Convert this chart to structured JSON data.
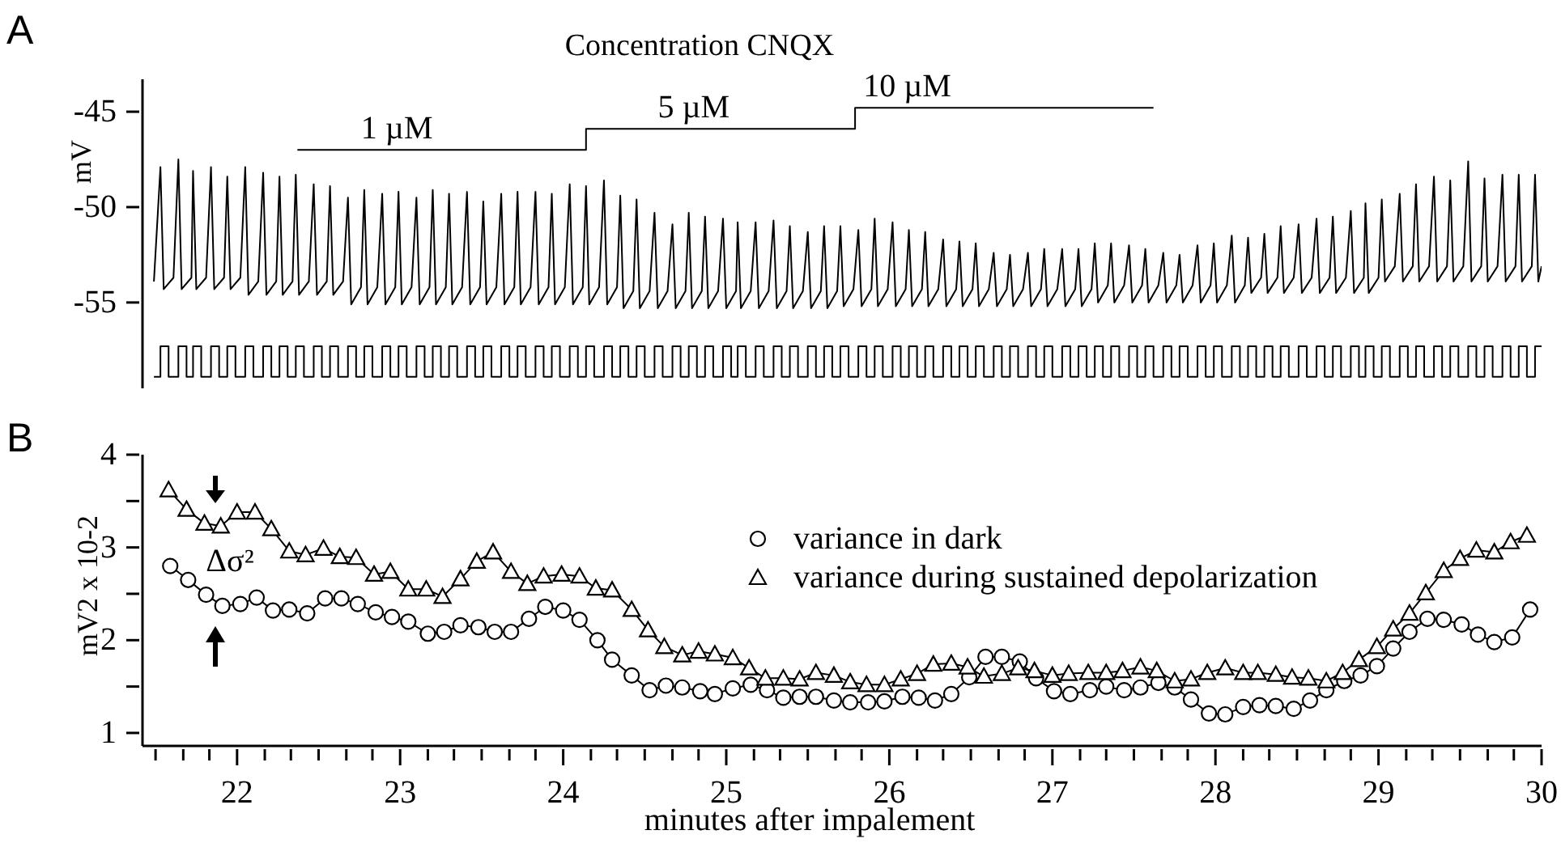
{
  "chart_data": [
    {
      "type": "line",
      "title": "Concentration CNQX",
      "ylabel": "mV",
      "annotations": [
        "A",
        {
          "text": "1 µM",
          "x": 22.98,
          "y": -47.0
        },
        {
          "text": "5 µM",
          "x": 24.8,
          "y": -45.9
        },
        {
          "text": "10 µM",
          "x": 26.11,
          "y": -44.8
        }
      ],
      "xlim": [
        21.42,
        30
      ],
      "ylim": [
        -59.5,
        -43.3
      ],
      "yticks": [
        -45,
        -50,
        -55
      ],
      "tick_labels": "y",
      "series": [
        {
          "color": "#000000",
          "x": [
            21.49,
            21.53,
            21.55,
            21.61,
            21.64,
            21.66,
            21.72,
            21.73,
            21.75,
            21.81,
            21.84,
            21.86,
            21.92,
            21.94,
            21.96,
            22.02,
            22.05,
            22.07,
            22.13,
            22.16,
            22.18,
            22.24,
            22.26,
            22.28,
            22.34,
            22.36,
            22.38,
            22.44,
            22.47,
            22.49,
            22.55,
            22.57,
            22.59,
            22.65,
            22.68,
            22.7,
            22.76,
            22.78,
            22.8,
            22.86,
            22.89,
            22.91,
            22.97,
            22.99,
            23.01,
            23.07,
            23.1,
            23.12,
            23.18,
            23.2,
            23.22,
            23.28,
            23.3,
            23.32,
            23.38,
            23.41,
            23.43,
            23.49,
            23.51,
            23.53,
            23.59,
            23.62,
            23.64,
            23.7,
            23.72,
            23.74,
            23.8,
            23.83,
            23.85,
            23.91,
            23.93,
            23.95,
            24.01,
            24.04,
            24.06,
            24.12,
            24.14,
            24.16,
            24.22,
            24.25,
            24.27,
            24.33,
            24.35,
            24.37,
            24.43,
            24.45,
            24.47,
            24.53,
            24.56,
            24.58,
            24.64,
            24.67,
            24.69,
            24.75,
            24.77,
            24.79,
            24.85,
            24.87,
            24.89,
            24.95,
            24.98,
            25.0,
            25.06,
            25.07,
            25.09,
            25.15,
            25.18,
            25.2,
            25.26,
            25.29,
            25.31,
            25.37,
            25.39,
            25.41,
            25.47,
            25.5,
            25.52,
            25.58,
            25.6,
            25.62,
            25.68,
            25.7,
            25.72,
            25.78,
            25.81,
            25.83,
            25.89,
            25.91,
            25.93,
            25.99,
            26.02,
            26.04,
            26.1,
            26.12,
            26.14,
            26.2,
            26.22,
            26.24,
            26.3,
            26.33,
            26.35,
            26.41,
            26.43,
            26.45,
            26.51,
            26.53,
            26.55,
            26.61,
            26.64,
            26.66,
            26.72,
            26.74,
            26.76,
            26.82,
            26.85,
            26.87,
            26.93,
            26.95,
            26.97,
            27.03,
            27.06,
            27.08,
            27.14,
            27.16,
            27.18,
            27.24,
            27.26,
            27.28,
            27.34,
            27.36,
            27.38,
            27.44,
            27.47,
            27.49,
            27.55,
            27.57,
            27.59,
            27.65,
            27.68,
            27.7,
            27.76,
            27.78,
            27.8,
            27.86,
            27.89,
            27.91,
            27.97,
            27.99,
            28.01,
            28.07,
            28.1,
            28.12,
            28.18,
            28.2,
            28.22,
            28.28,
            28.3,
            28.32,
            28.38,
            28.4,
            28.42,
            28.48,
            28.51,
            28.53,
            28.59,
            28.62,
            28.64,
            28.7,
            28.72,
            28.74,
            28.8,
            28.83,
            28.85,
            28.91,
            28.92,
            28.94,
            29.0,
            29.02,
            29.04,
            29.1,
            29.13,
            29.15,
            29.21,
            29.23,
            29.25,
            29.31,
            29.34,
            29.36,
            29.42,
            29.44,
            29.46,
            29.52,
            29.55,
            29.57,
            29.63,
            29.65,
            29.67,
            29.73,
            29.76,
            29.78,
            29.84,
            29.86,
            29.88,
            29.94,
            29.96,
            29.98,
            30.0
          ],
          "values": [
            -53.9,
            -47.9,
            -54.3,
            -53.7,
            -47.5,
            -54.3,
            -53.7,
            -48.1,
            -54.3,
            -53.7,
            -47.9,
            -54.3,
            -53.7,
            -48.4,
            -54.3,
            -53.7,
            -47.9,
            -54.6,
            -53.9,
            -48.2,
            -54.6,
            -53.9,
            -48.4,
            -54.6,
            -53.9,
            -48.3,
            -54.6,
            -53.9,
            -48.8,
            -54.6,
            -53.9,
            -48.9,
            -54.6,
            -53.9,
            -49.5,
            -55.1,
            -54.2,
            -49.1,
            -55.1,
            -54.2,
            -49.3,
            -55.1,
            -54.2,
            -49.2,
            -55.1,
            -54.2,
            -49.5,
            -55.1,
            -54.2,
            -49.1,
            -55.1,
            -54.2,
            -49.3,
            -55.1,
            -54.2,
            -49.2,
            -55.1,
            -54.2,
            -49.7,
            -55.1,
            -54.2,
            -49.3,
            -55.1,
            -54.2,
            -49.2,
            -55.1,
            -54.2,
            -49.2,
            -55.1,
            -54.2,
            -49.3,
            -55.1,
            -54.2,
            -48.8,
            -55.1,
            -54.2,
            -48.9,
            -55.1,
            -54.2,
            -48.6,
            -55.1,
            -54.2,
            -49.4,
            -55.3,
            -54.4,
            -49.6,
            -55.3,
            -54.4,
            -50.3,
            -55.3,
            -54.4,
            -50.9,
            -55.3,
            -54.4,
            -50.3,
            -55.3,
            -54.4,
            -50.5,
            -55.3,
            -54.4,
            -50.6,
            -55.3,
            -54.4,
            -50.8,
            -55.3,
            -54.4,
            -50.8,
            -55.3,
            -54.4,
            -50.7,
            -55.3,
            -54.4,
            -51.0,
            -55.3,
            -54.4,
            -51.3,
            -55.3,
            -54.4,
            -51.0,
            -55.3,
            -54.4,
            -51.0,
            -55.2,
            -54.3,
            -51.2,
            -55.2,
            -54.3,
            -50.6,
            -55.2,
            -54.3,
            -50.8,
            -55.2,
            -54.3,
            -51.2,
            -55.2,
            -54.3,
            -51.3,
            -55.2,
            -54.3,
            -51.7,
            -55.2,
            -54.3,
            -51.8,
            -55.2,
            -54.3,
            -51.9,
            -55.2,
            -54.3,
            -52.4,
            -55.2,
            -54.3,
            -52.5,
            -55.2,
            -54.3,
            -52.4,
            -55.2,
            -54.3,
            -52.2,
            -55.2,
            -54.3,
            -52.2,
            -55.2,
            -54.3,
            -52.2,
            -55.2,
            -54.3,
            -51.9,
            -55.0,
            -54.1,
            -51.9,
            -55.0,
            -54.1,
            -52.0,
            -55.0,
            -54.1,
            -52.2,
            -55.0,
            -54.1,
            -52.4,
            -55.0,
            -54.1,
            -52.5,
            -55.0,
            -54.1,
            -52.0,
            -55.0,
            -54.1,
            -51.9,
            -55.0,
            -54.1,
            -51.5,
            -55.0,
            -54.1,
            -51.6,
            -54.5,
            -53.7,
            -51.4,
            -54.5,
            -53.7,
            -51.0,
            -54.5,
            -53.7,
            -50.9,
            -54.5,
            -53.7,
            -50.6,
            -54.5,
            -53.7,
            -50.5,
            -54.5,
            -53.7,
            -50.2,
            -54.5,
            -53.7,
            -49.8,
            -54.5,
            -53.7,
            -49.6,
            -53.9,
            -53.1,
            -49.3,
            -53.9,
            -53.1,
            -48.8,
            -53.9,
            -53.1,
            -48.4,
            -53.9,
            -53.1,
            -48.6,
            -53.9,
            -53.1,
            -47.6,
            -53.9,
            -53.1,
            -48.5,
            -53.9,
            -53.1,
            -48.3,
            -53.9,
            -53.1,
            -48.3,
            -53.9,
            -53.1,
            -48.3,
            -53.9,
            -53.1
          ]
        },
        {
          "type": "step",
          "color": "#000000",
          "x": [
            21.49,
            21.53,
            21.58,
            21.64,
            21.69,
            21.73,
            21.78,
            21.84,
            21.89,
            21.94,
            21.99,
            22.05,
            22.1,
            22.16,
            22.21,
            22.26,
            22.31,
            22.36,
            22.41,
            22.47,
            22.52,
            22.57,
            22.62,
            22.68,
            22.73,
            22.78,
            22.83,
            22.89,
            22.94,
            22.99,
            23.04,
            23.1,
            23.15,
            23.2,
            23.25,
            23.3,
            23.35,
            23.41,
            23.46,
            23.51,
            23.56,
            23.62,
            23.67,
            23.72,
            23.77,
            23.83,
            23.88,
            23.93,
            23.98,
            24.04,
            24.09,
            24.14,
            24.19,
            24.25,
            24.3,
            24.35,
            24.4,
            24.45,
            24.5,
            24.56,
            24.61,
            24.67,
            24.72,
            24.77,
            24.82,
            24.87,
            24.92,
            24.98,
            25.03,
            25.07,
            25.12,
            25.18,
            25.23,
            25.29,
            25.34,
            25.39,
            25.44,
            25.5,
            25.55,
            25.6,
            25.65,
            25.7,
            25.75,
            25.81,
            25.86,
            25.91,
            25.96,
            26.02,
            26.07,
            26.12,
            26.17,
            26.22,
            26.27,
            26.33,
            26.38,
            26.43,
            26.48,
            26.53,
            26.58,
            26.64,
            26.69,
            26.74,
            26.79,
            26.85,
            26.9,
            26.95,
            27.0,
            27.06,
            27.11,
            27.16,
            27.21,
            27.26,
            27.31,
            27.36,
            27.41,
            27.47,
            27.52,
            27.57,
            27.62,
            27.68,
            27.73,
            27.78,
            27.83,
            27.89,
            27.94,
            27.99,
            28.04,
            28.1,
            28.15,
            28.2,
            28.25,
            28.3,
            28.35,
            28.4,
            28.45,
            28.51,
            28.56,
            28.62,
            28.67,
            28.72,
            28.77,
            28.83,
            28.88,
            28.92,
            28.97,
            29.02,
            29.07,
            29.13,
            29.18,
            29.23,
            29.28,
            29.34,
            29.39,
            29.44,
            29.49,
            29.55,
            29.6,
            29.65,
            29.7,
            29.76,
            29.81,
            29.86,
            29.91,
            29.96,
            30.0
          ],
          "values": [
            -58.9,
            -57.3,
            -58.9,
            -57.3,
            -58.9,
            -57.3,
            -58.9,
            -57.3,
            -58.9,
            -57.3,
            -58.9,
            -57.3,
            -58.9,
            -57.3,
            -58.9,
            -57.3,
            -58.9,
            -57.3,
            -58.9,
            -57.3,
            -58.9,
            -57.3,
            -58.9,
            -57.3,
            -58.9,
            -57.3,
            -58.9,
            -57.3,
            -58.9,
            -57.3,
            -58.9,
            -57.3,
            -58.9,
            -57.3,
            -58.9,
            -57.3,
            -58.9,
            -57.3,
            -58.9,
            -57.3,
            -58.9,
            -57.3,
            -58.9,
            -57.3,
            -58.9,
            -57.3,
            -58.9,
            -57.3,
            -58.9,
            -57.3,
            -58.9,
            -57.3,
            -58.9,
            -57.3,
            -58.9,
            -57.3,
            -58.9,
            -57.3,
            -58.9,
            -57.3,
            -58.9,
            -57.3,
            -58.9,
            -57.3,
            -58.9,
            -57.3,
            -58.9,
            -57.3,
            -58.9,
            -57.3,
            -58.9,
            -57.3,
            -58.9,
            -57.3,
            -58.9,
            -57.3,
            -58.9,
            -57.3,
            -58.9,
            -57.3,
            -58.9,
            -57.3,
            -58.9,
            -57.3,
            -58.9,
            -57.3,
            -58.9,
            -57.3,
            -58.9,
            -57.3,
            -58.9,
            -57.3,
            -58.9,
            -57.3,
            -58.9,
            -57.3,
            -58.9,
            -57.3,
            -58.9,
            -57.3,
            -58.9,
            -57.3,
            -58.9,
            -57.3,
            -58.9,
            -57.3,
            -58.9,
            -57.3,
            -58.9,
            -57.3,
            -58.9,
            -57.3,
            -58.9,
            -57.3,
            -58.9,
            -57.3,
            -58.9,
            -57.3,
            -58.9,
            -57.3,
            -58.9,
            -57.3,
            -58.9,
            -57.3,
            -58.9,
            -57.3,
            -58.9,
            -57.3,
            -58.9,
            -57.3,
            -58.9,
            -57.3,
            -58.9,
            -57.3,
            -58.9,
            -57.3,
            -58.9,
            -57.3,
            -58.9,
            -57.3,
            -58.9,
            -57.3,
            -58.9,
            -57.3,
            -58.9,
            -57.3,
            -58.9,
            -57.3,
            -58.9,
            -57.3,
            -58.9,
            -57.3,
            -58.9,
            -57.3,
            -58.9,
            -57.3,
            -58.9,
            -57.3,
            -58.9,
            -57.3,
            -58.9,
            -57.3,
            -58.9,
            -57.3,
            -57.3
          ]
        },
        {
          "color": "#000000",
          "x": [
            22.37,
            24.14,
            24.14,
            25.79,
            25.79,
            27.62
          ],
          "values": [
            -47.0,
            -47.0,
            -45.9,
            -45.9,
            -44.8,
            -44.8
          ]
        }
      ]
    },
    {
      "type": "line",
      "xlabel": "minutes after impalement",
      "ylabel": "mV2 x 10-2",
      "legend": "right",
      "annotations": [
        "B",
        "Δσ²"
      ],
      "xlim": [
        21.42,
        30
      ],
      "ylim": [
        0.86,
        4
      ],
      "xticks": [
        {
          "value": 21.5,
          "label": null
        },
        {
          "value": 21.67,
          "label": null
        },
        {
          "value": 21.83,
          "label": null
        },
        22,
        {
          "value": 22.17,
          "label": null
        },
        {
          "value": 22.33,
          "label": null
        },
        {
          "value": 22.5,
          "label": null
        },
        {
          "value": 22.67,
          "label": null
        },
        {
          "value": 22.83,
          "label": null
        },
        23,
        {
          "value": 23.17,
          "label": null
        },
        {
          "value": 23.33,
          "label": null
        },
        {
          "value": 23.5,
          "label": null
        },
        {
          "value": 23.67,
          "label": null
        },
        {
          "value": 23.83,
          "label": null
        },
        24,
        {
          "value": 24.17,
          "label": null
        },
        {
          "value": 24.33,
          "label": null
        },
        {
          "value": 24.5,
          "label": null
        },
        {
          "value": 24.67,
          "label": null
        },
        {
          "value": 24.83,
          "label": null
        },
        25,
        {
          "value": 25.17,
          "label": null
        },
        {
          "value": 25.33,
          "label": null
        },
        {
          "value": 25.5,
          "label": null
        },
        {
          "value": 25.67,
          "label": null
        },
        {
          "value": 25.83,
          "label": null
        },
        26,
        {
          "value": 26.17,
          "label": null
        },
        {
          "value": 26.33,
          "label": null
        },
        {
          "value": 26.5,
          "label": null
        },
        {
          "value": 26.67,
          "label": null
        },
        {
          "value": 26.83,
          "label": null
        },
        27,
        {
          "value": 27.17,
          "label": null
        },
        {
          "value": 27.33,
          "label": null
        },
        {
          "value": 27.5,
          "label": null
        },
        {
          "value": 27.67,
          "label": null
        },
        {
          "value": 27.83,
          "label": null
        },
        28,
        {
          "value": 28.17,
          "label": null
        },
        {
          "value": 28.33,
          "label": null
        },
        {
          "value": 28.5,
          "label": null
        },
        {
          "value": 28.67,
          "label": null
        },
        {
          "value": 28.83,
          "label": null
        },
        29,
        {
          "value": 29.17,
          "label": null
        },
        {
          "value": 29.33,
          "label": null
        },
        {
          "value": 29.5,
          "label": null
        },
        {
          "value": 29.67,
          "label": null
        },
        {
          "value": 29.83,
          "label": null
        },
        30
      ],
      "yticks": [
        1,
        {
          "value": 1.5,
          "label": null
        },
        2,
        {
          "value": 2.5,
          "label": null
        },
        3,
        {
          "value": 3.5,
          "label": null
        },
        4
      ],
      "series": [
        {
          "name": "variance in dark",
          "color": "#000000",
          "marker": "circle",
          "x": [
            21.59,
            21.7,
            21.81,
            21.91,
            22.02,
            22.12,
            22.22,
            22.32,
            22.43,
            22.54,
            22.64,
            22.74,
            22.85,
            22.95,
            23.05,
            23.17,
            23.27,
            23.37,
            23.48,
            23.58,
            23.68,
            23.79,
            23.89,
            24.0,
            24.1,
            24.21,
            24.3,
            24.42,
            24.53,
            24.63,
            24.73,
            24.84,
            24.93,
            25.04,
            25.15,
            25.25,
            25.35,
            25.45,
            25.55,
            25.66,
            25.76,
            25.87,
            25.97,
            26.08,
            26.18,
            26.28,
            26.38,
            26.49,
            26.59,
            26.69,
            26.8,
            26.9,
            27.01,
            27.11,
            27.23,
            27.33,
            27.44,
            27.54,
            27.65,
            27.75,
            27.85,
            27.96,
            28.06,
            28.17,
            28.27,
            28.37,
            28.48,
            28.58,
            28.68,
            28.79,
            28.89,
            28.99,
            29.09,
            29.19,
            29.3,
            29.4,
            29.51,
            29.61,
            29.71,
            29.82,
            29.93
          ],
          "values": [
            2.8,
            2.65,
            2.49,
            2.37,
            2.39,
            2.46,
            2.32,
            2.33,
            2.29,
            2.45,
            2.45,
            2.39,
            2.3,
            2.25,
            2.2,
            2.07,
            2.09,
            2.16,
            2.14,
            2.09,
            2.09,
            2.23,
            2.36,
            2.32,
            2.22,
            2.0,
            1.79,
            1.62,
            1.46,
            1.51,
            1.49,
            1.45,
            1.42,
            1.48,
            1.52,
            1.46,
            1.38,
            1.39,
            1.39,
            1.35,
            1.33,
            1.33,
            1.34,
            1.39,
            1.38,
            1.35,
            1.42,
            1.6,
            1.82,
            1.82,
            1.77,
            1.59,
            1.45,
            1.42,
            1.46,
            1.5,
            1.46,
            1.49,
            1.54,
            1.49,
            1.36,
            1.21,
            1.2,
            1.28,
            1.3,
            1.29,
            1.26,
            1.35,
            1.46,
            1.56,
            1.62,
            1.72,
            1.91,
            2.09,
            2.23,
            2.22,
            2.17,
            2.06,
            1.98,
            2.03,
            2.33
          ]
        },
        {
          "name": "variance during sustained depolarization",
          "color": "#000000",
          "marker": "triangle",
          "x": [
            21.58,
            21.69,
            21.8,
            21.9,
            22.0,
            22.11,
            22.21,
            22.32,
            22.42,
            22.53,
            22.63,
            22.73,
            22.84,
            22.94,
            23.05,
            23.16,
            23.26,
            23.37,
            23.47,
            23.57,
            23.68,
            23.78,
            23.88,
            23.99,
            24.1,
            24.2,
            24.3,
            24.42,
            24.52,
            24.62,
            24.73,
            24.83,
            24.93,
            25.04,
            25.14,
            25.24,
            25.35,
            25.45,
            25.55,
            25.66,
            25.76,
            25.86,
            25.97,
            26.07,
            26.17,
            26.27,
            26.38,
            26.48,
            26.58,
            26.69,
            26.79,
            26.89,
            27.0,
            27.1,
            27.22,
            27.33,
            27.43,
            27.54,
            27.64,
            27.75,
            27.85,
            27.95,
            28.06,
            28.17,
            28.26,
            28.37,
            28.47,
            28.57,
            28.68,
            28.78,
            28.88,
            28.99,
            29.09,
            29.19,
            29.29,
            29.4,
            29.5,
            29.6,
            29.71,
            29.81,
            29.91
          ],
          "values": [
            3.62,
            3.41,
            3.26,
            3.23,
            3.38,
            3.38,
            3.2,
            2.96,
            2.92,
            2.99,
            2.9,
            2.89,
            2.71,
            2.74,
            2.55,
            2.55,
            2.47,
            2.66,
            2.85,
            2.95,
            2.74,
            2.61,
            2.69,
            2.71,
            2.69,
            2.56,
            2.54,
            2.33,
            2.11,
            1.93,
            1.84,
            1.88,
            1.85,
            1.81,
            1.7,
            1.59,
            1.59,
            1.58,
            1.65,
            1.62,
            1.55,
            1.52,
            1.52,
            1.58,
            1.64,
            1.74,
            1.75,
            1.71,
            1.61,
            1.64,
            1.7,
            1.67,
            1.62,
            1.64,
            1.65,
            1.65,
            1.67,
            1.71,
            1.67,
            1.56,
            1.58,
            1.65,
            1.7,
            1.65,
            1.65,
            1.63,
            1.6,
            1.59,
            1.56,
            1.65,
            1.79,
            1.93,
            2.12,
            2.29,
            2.51,
            2.75,
            2.88,
            2.97,
            2.95,
            3.06,
            3.13
          ]
        }
      ]
    }
  ]
}
